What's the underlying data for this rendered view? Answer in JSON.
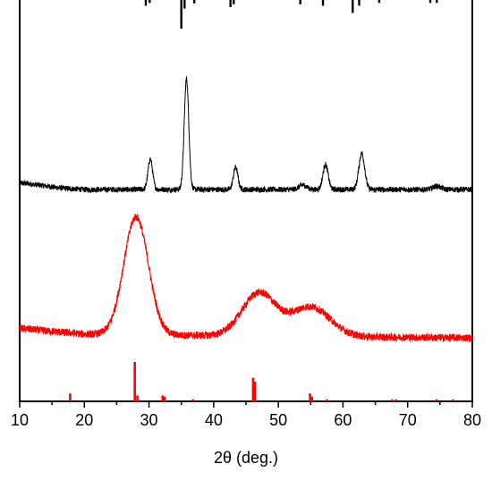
{
  "chart_data": {
    "type": "line",
    "title": "",
    "xlabel": "2θ (deg.)",
    "ylabel": "",
    "xlim": [
      10,
      80
    ],
    "x_ticks": [
      10,
      20,
      30,
      40,
      50,
      60,
      70,
      80
    ],
    "grid": false,
    "legend": "none",
    "series": [
      {
        "color": "#000000",
        "style": "reference-sticks-downward",
        "peaks": [
          {
            "x": 29.5,
            "h": 0.2
          },
          {
            "x": 30.1,
            "h": 0.1
          },
          {
            "x": 35.0,
            "h": 1.0
          },
          {
            "x": 35.5,
            "h": 0.3
          },
          {
            "x": 37.0,
            "h": 0.12
          },
          {
            "x": 42.6,
            "h": 0.25
          },
          {
            "x": 43.1,
            "h": 0.15
          },
          {
            "x": 53.4,
            "h": 0.15
          },
          {
            "x": 56.9,
            "h": 0.2
          },
          {
            "x": 61.5,
            "h": 0.45
          },
          {
            "x": 62.5,
            "h": 0.2
          },
          {
            "x": 65.6,
            "h": 0.1
          },
          {
            "x": 73.5,
            "h": 0.1
          },
          {
            "x": 74.5,
            "h": 0.1
          }
        ]
      },
      {
        "color": "#000000",
        "style": "noisy-pattern",
        "baseline": 0.0,
        "noise": 0.05,
        "background": [
          {
            "x": 10,
            "y": 0.12
          },
          {
            "x": 13,
            "y": 0.08
          },
          {
            "x": 16,
            "y": 0.03
          },
          {
            "x": 20,
            "y": 0.0
          },
          {
            "x": 80,
            "y": 0.0
          }
        ],
        "peaks": [
          {
            "x": 30.2,
            "h": 0.55,
            "w": 0.35
          },
          {
            "x": 35.8,
            "h": 2.0,
            "w": 0.35
          },
          {
            "x": 43.4,
            "h": 0.4,
            "w": 0.35
          },
          {
            "x": 57.3,
            "h": 0.45,
            "w": 0.4
          },
          {
            "x": 62.9,
            "h": 0.65,
            "w": 0.45
          },
          {
            "x": 53.8,
            "h": 0.08,
            "w": 0.6
          },
          {
            "x": 74.5,
            "h": 0.06,
            "w": 0.6
          }
        ]
      },
      {
        "color": "#ff0000",
        "style": "noisy-pattern",
        "baseline": 0.0,
        "noise": 0.07,
        "background": [
          {
            "x": 10,
            "y": 0.18
          },
          {
            "x": 15,
            "y": 0.12
          },
          {
            "x": 20,
            "y": 0.07
          },
          {
            "x": 24,
            "y": 0.06
          },
          {
            "x": 80,
            "y": 0.0
          }
        ],
        "peaks": [
          {
            "x": 28.0,
            "h": 2.2,
            "w": 1.9
          },
          {
            "x": 47.0,
            "h": 0.8,
            "w": 2.6
          },
          {
            "x": 55.0,
            "h": 0.55,
            "w": 3.0
          }
        ]
      },
      {
        "color": "#ff0000",
        "style": "reference-sticks-upward",
        "peaks": [
          {
            "x": 17.8,
            "h": 0.2
          },
          {
            "x": 27.8,
            "h": 1.0
          },
          {
            "x": 28.2,
            "h": 0.15
          },
          {
            "x": 32.1,
            "h": 0.15
          },
          {
            "x": 32.4,
            "h": 0.12
          },
          {
            "x": 36.8,
            "h": 0.05
          },
          {
            "x": 46.1,
            "h": 0.6
          },
          {
            "x": 46.4,
            "h": 0.5
          },
          {
            "x": 54.9,
            "h": 0.2
          },
          {
            "x": 55.2,
            "h": 0.12
          },
          {
            "x": 57.5,
            "h": 0.05
          },
          {
            "x": 67.6,
            "h": 0.05
          },
          {
            "x": 68.2,
            "h": 0.05
          },
          {
            "x": 74.5,
            "h": 0.05
          },
          {
            "x": 77.0,
            "h": 0.05
          }
        ]
      }
    ]
  }
}
